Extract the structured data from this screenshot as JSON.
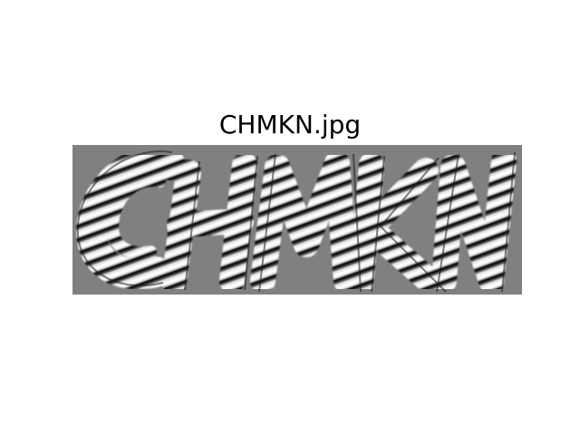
{
  "figure": {
    "title": "CHMKN.jpg",
    "background_color": "#ffffff"
  },
  "image": {
    "depicted_text": "CHMKN",
    "background_gray": "#808080",
    "stripe_dark": "#0a0a0a",
    "stripe_light": "#f4f4f4"
  }
}
